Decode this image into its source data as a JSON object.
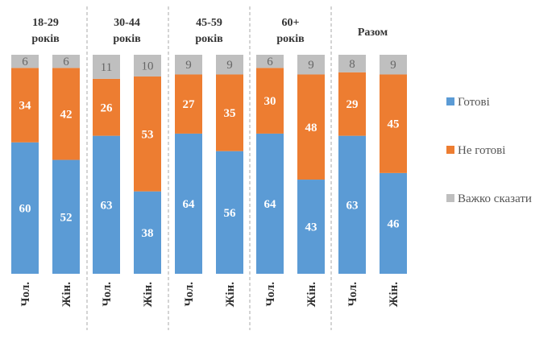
{
  "chart_data": {
    "type": "bar",
    "stacked": true,
    "groups": [
      "18-29 років",
      "30-44 років",
      "45-59 років",
      "60+ років",
      "Разом"
    ],
    "group_lines": [
      [
        "18-29",
        "років"
      ],
      [
        "30-44",
        "років"
      ],
      [
        "45-59",
        "років"
      ],
      [
        "60+",
        "років"
      ],
      [
        "Разом"
      ]
    ],
    "categories": [
      "Чол.",
      "Жін."
    ],
    "series": [
      {
        "name": "Готові",
        "color": "#5b9bd5",
        "values": [
          [
            60,
            52
          ],
          [
            63,
            38
          ],
          [
            64,
            56
          ],
          [
            64,
            43
          ],
          [
            63,
            46
          ]
        ]
      },
      {
        "name": "Не готові",
        "color": "#ed7d31",
        "values": [
          [
            34,
            42
          ],
          [
            26,
            53
          ],
          [
            27,
            35
          ],
          [
            30,
            48
          ],
          [
            29,
            45
          ]
        ]
      },
      {
        "name": "Важко сказати",
        "color": "#bfbfbf",
        "values": [
          [
            6,
            6
          ],
          [
            11,
            10
          ],
          [
            9,
            9
          ],
          [
            6,
            9
          ],
          [
            8,
            9
          ]
        ]
      }
    ],
    "legend_position": "right",
    "grid": false,
    "group_separators": "dashed"
  }
}
